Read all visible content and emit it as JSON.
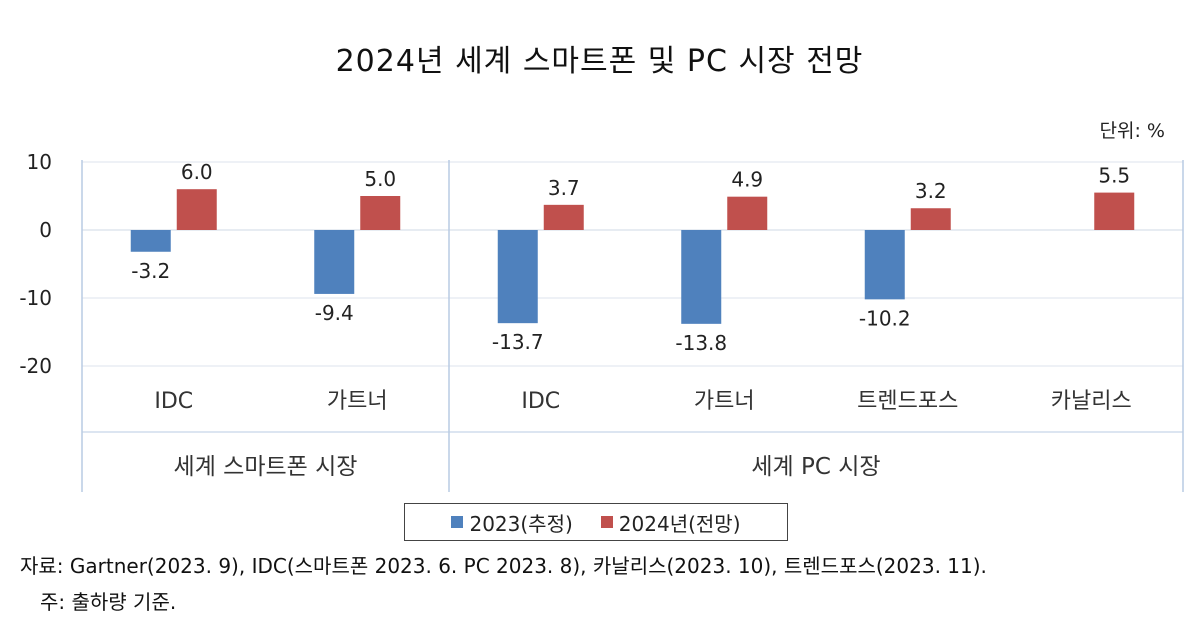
{
  "chart_data": {
    "type": "bar",
    "title": "2024년 세계 스마트폰 및 PC 시장 전망",
    "unit_label": "단위: %",
    "categories": [
      "IDC",
      "가트너",
      "IDC",
      "가트너",
      "트렌드포스",
      "카날리스"
    ],
    "groups": [
      {
        "label": "세계 스마트폰 시장",
        "categories": [
          "IDC",
          "가트너"
        ]
      },
      {
        "label": "세계 PC 시장",
        "categories": [
          "IDC",
          "가트너",
          "트렌드포스",
          "카날리스"
        ]
      }
    ],
    "series": [
      {
        "name": "2023(추정)",
        "color": "#4f81bd",
        "values": [
          -3.2,
          -9.4,
          -13.7,
          -13.8,
          -10.2,
          null
        ],
        "labels": [
          "-3.2",
          "-9.4",
          "-13.7",
          "-13.8",
          "-10.2",
          ""
        ]
      },
      {
        "name": "2024년(전망)",
        "color": "#c0504d",
        "values": [
          6.0,
          5.0,
          3.7,
          4.9,
          3.2,
          5.5
        ],
        "labels": [
          "6.0",
          "5.0",
          "3.7",
          "4.9",
          "3.2",
          "5.5"
        ]
      }
    ],
    "y_ticks": [
      "10",
      "0",
      "-10",
      "-20"
    ],
    "ylim": [
      -20,
      10
    ],
    "grid": true,
    "legend_position": "bottom"
  },
  "source_text": "자료: Gartner(2023. 9), IDC(스마트폰 2023. 6. PC 2023. 8), 카날리스(2023. 10), 트렌드포스(2023. 11).",
  "note_text": "주: 출하량 기준."
}
